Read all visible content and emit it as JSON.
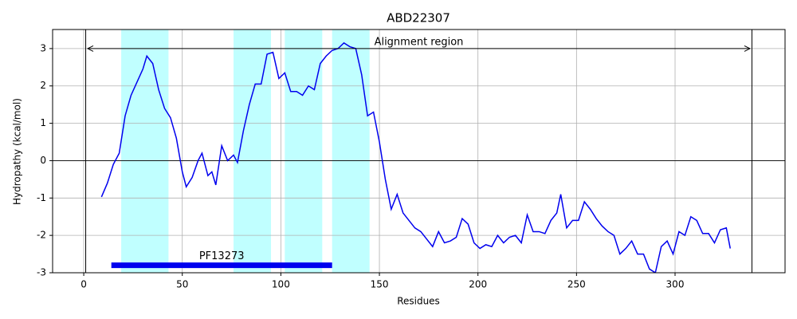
{
  "chart_data": {
    "type": "line",
    "title": "ABD22307",
    "x_label": "Residues",
    "y_label": "Hydropathy (kcal/mol)",
    "xlim": [
      -15.8,
      355.8
    ],
    "ylim": [
      -3,
      3.51
    ],
    "xticks": [
      0,
      50,
      100,
      150,
      200,
      250,
      300
    ],
    "yticks": [
      -3,
      -2,
      -1,
      0,
      1,
      2,
      3
    ],
    "grid": true,
    "color": "#0000ee",
    "zero_line": 0,
    "x": [
      9,
      12,
      15,
      18,
      21,
      24,
      27,
      30,
      32,
      35,
      38,
      41,
      44,
      47,
      50,
      52,
      55,
      58,
      60,
      63,
      65,
      67,
      70,
      73,
      76,
      78,
      81,
      84,
      87,
      90,
      93,
      96,
      99,
      102,
      105,
      108,
      111,
      114,
      117,
      120,
      123,
      126,
      129,
      132,
      135,
      138,
      141,
      144,
      147,
      150,
      153,
      156,
      159,
      162,
      165,
      168,
      171,
      174,
      177,
      180,
      183,
      186,
      189,
      192,
      195,
      198,
      201,
      204,
      207,
      210,
      213,
      216,
      219,
      222,
      225,
      228,
      231,
      234,
      237,
      240,
      242,
      245,
      248,
      251,
      254,
      257,
      260,
      263,
      266,
      269,
      272,
      275,
      278,
      281,
      284,
      287,
      290,
      293,
      296,
      299,
      302,
      305,
      308,
      311,
      314,
      317,
      320,
      323,
      326,
      328
    ],
    "values": [
      -0.97,
      -0.6,
      -0.1,
      0.2,
      1.2,
      1.75,
      2.1,
      2.45,
      2.8,
      2.6,
      1.9,
      1.4,
      1.15,
      0.6,
      -0.3,
      -0.7,
      -0.45,
      0.0,
      0.2,
      -0.4,
      -0.3,
      -0.65,
      0.4,
      0.0,
      0.15,
      -0.05,
      0.8,
      1.5,
      2.05,
      2.05,
      2.85,
      2.9,
      2.2,
      2.35,
      1.85,
      1.85,
      1.75,
      2.0,
      1.9,
      2.6,
      2.8,
      2.95,
      3.0,
      3.15,
      3.05,
      3.0,
      2.3,
      1.2,
      1.3,
      0.5,
      -0.5,
      -1.3,
      -0.9,
      -1.4,
      -1.6,
      -1.8,
      -1.9,
      -2.1,
      -2.3,
      -1.9,
      -2.2,
      -2.15,
      -2.05,
      -1.55,
      -1.7,
      -2.2,
      -2.35,
      -2.25,
      -2.3,
      -2.0,
      -2.2,
      -2.05,
      -2.0,
      -2.2,
      -1.45,
      -1.9,
      -1.9,
      -1.95,
      -1.6,
      -1.4,
      -0.9,
      -1.8,
      -1.6,
      -1.6,
      -1.1,
      -1.3,
      -1.55,
      -1.75,
      -1.9,
      -2.0,
      -2.5,
      -2.35,
      -2.15,
      -2.5,
      -2.5,
      -2.9,
      -3.0,
      -2.3,
      -2.15,
      -2.5,
      -1.9,
      -2.0,
      -1.5,
      -1.6,
      -1.95,
      -1.95,
      -2.2,
      -1.85,
      -1.8,
      -2.35
    ],
    "spans": [
      [
        19,
        43
      ],
      [
        76,
        95
      ],
      [
        102,
        121
      ],
      [
        126,
        145
      ]
    ],
    "span_color": "#c0ffff",
    "vlines": [
      1,
      339
    ],
    "annotation": {
      "text": "Alignment region",
      "x": [
        2,
        338
      ],
      "y": 3
    },
    "domain": {
      "label": "PF13273",
      "x": [
        14,
        126
      ],
      "y": -2.8,
      "color": "#0000ee"
    }
  }
}
